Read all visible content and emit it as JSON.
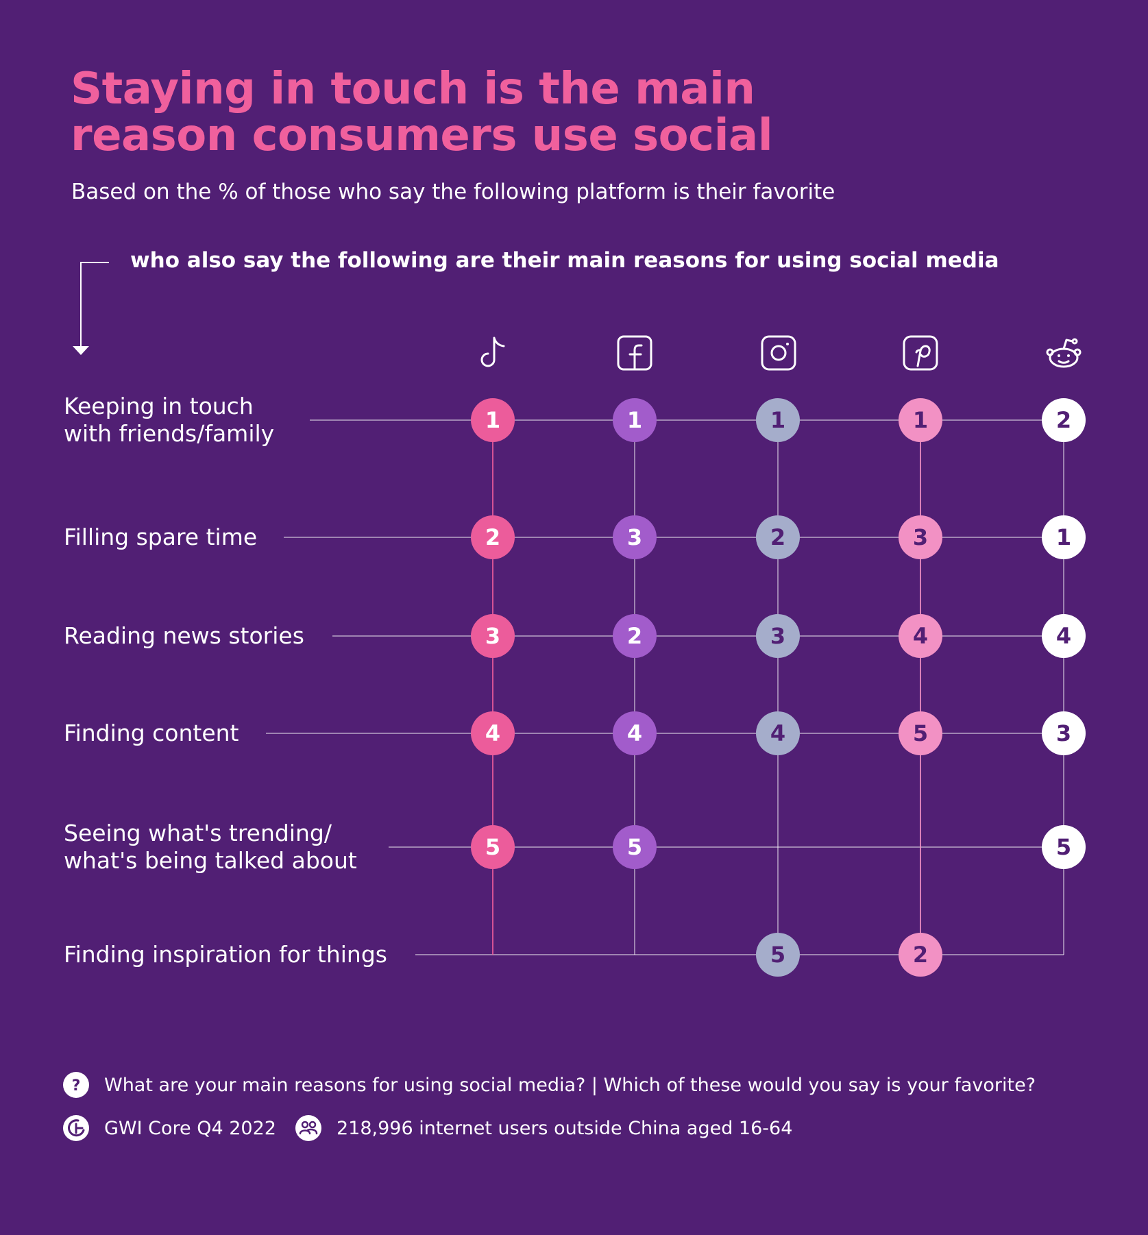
{
  "title_lines": [
    "Staying in touch is the main",
    "reason consumers use social"
  ],
  "subtitle": "Based on the % of those who say the following platform is their favorite",
  "lead_in": "who also say the following are their main reasons for using social media",
  "colors": {
    "background": "#511f74",
    "tiktok": "#ec5c9b",
    "facebook": "#a25ccb",
    "instagram": "#a5adcb",
    "pinterest": "#f291c4",
    "reddit": "#ffffff",
    "rank_text_dark": "#511f74",
    "connector": "rgba(255,255,255,0.45)"
  },
  "platforms": [
    {
      "icon": "tiktok-icon"
    },
    {
      "icon": "facebook-icon"
    },
    {
      "icon": "instagram-icon"
    },
    {
      "icon": "pinterest-icon"
    },
    {
      "icon": "reddit-icon"
    }
  ],
  "chart_data": {
    "type": "table",
    "rows": [
      [
        "Keeping in touch",
        "with friends/family"
      ],
      [
        "Filling spare time"
      ],
      [
        "Reading news stories"
      ],
      [
        "Finding content"
      ],
      [
        "Seeing what's trending/",
        "what's being talked about"
      ],
      [
        "Finding inspiration for things"
      ]
    ],
    "columns": [
      "tiktok-icon",
      "facebook-icon",
      "instagram-icon",
      "pinterest-icon",
      "reddit-icon"
    ],
    "ranks": [
      [
        1,
        1,
        1,
        1,
        2
      ],
      [
        2,
        3,
        2,
        3,
        1
      ],
      [
        3,
        2,
        3,
        4,
        4
      ],
      [
        4,
        4,
        4,
        5,
        3
      ],
      [
        5,
        5,
        null,
        null,
        5
      ],
      [
        null,
        null,
        5,
        2,
        null
      ]
    ]
  },
  "footer": {
    "question": "What are your main reasons for using social media? | Which of these would you say is your favorite?",
    "source": "GWI Core Q4 2022",
    "sample": "218,996 internet users outside China aged 16-64"
  }
}
